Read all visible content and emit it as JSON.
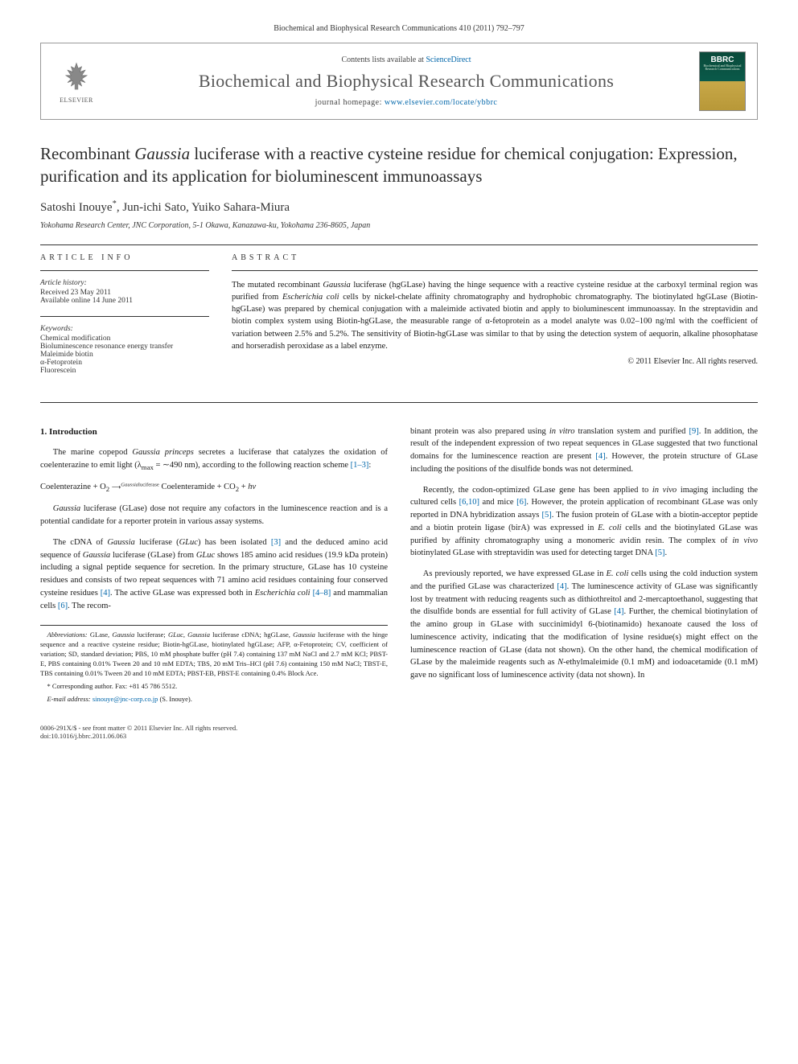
{
  "journal_ref": "Biochemical and Biophysical Research Communications 410 (2011) 792–797",
  "header": {
    "contents_prefix": "Contents lists available at ",
    "contents_link": "ScienceDirect",
    "journal_name": "Biochemical and Biophysical Research Communications",
    "homepage_prefix": "journal homepage: ",
    "homepage_url": "www.elsevier.com/locate/ybbrc",
    "publisher": "ELSEVIER",
    "cover_code": "BBRC",
    "cover_sub": "Biochemical and Biophysical Research Communications"
  },
  "title_html": "Recombinant <em>Gaussia</em> luciferase with a reactive cysteine residue for chemical conjugation: Expression, purification and its application for bioluminescent immunoassays",
  "authors": "Satoshi Inouye",
  "authors_sup": "*",
  "authors_rest": ", Jun-ichi Sato, Yuiko Sahara-Miura",
  "affiliation": "Yokohama Research Center, JNC Corporation, 5-1 Okawa, Kanazawa-ku, Yokohama 236-8605, Japan",
  "article_info": {
    "head": "article info",
    "history_label": "Article history:",
    "received": "Received 23 May 2011",
    "online": "Available online 14 June 2011",
    "keywords_label": "Keywords:",
    "keywords": [
      "Chemical modification",
      "Bioluminescence resonance energy transfer",
      "Maleimide biotin",
      "α-Fetoprotein",
      "Fluorescein"
    ]
  },
  "abstract": {
    "head": "abstract",
    "text_html": "The mutated recombinant <em>Gaussia</em> luciferase (hgGLase) having the hinge sequence with a reactive cysteine residue at the carboxyl terminal region was purified from <em>Escherichia coli</em> cells by nickel-chelate affinity chromatography and hydrophobic chromatography. The biotinylated hgGLase (Biotin-hgGLase) was prepared by chemical conjugation with a maleimide activated biotin and apply to bioluminescent immunoassay. In the streptavidin and biotin complex system using Biotin-hgGLase, the measurable range of α-fetoprotein as a model analyte was 0.02–100 ng/ml with the coefficient of variation between 2.5% and 5.2%. The sensitivity of Biotin-hgGLase was similar to that by using the detection system of aequorin, alkaline phosophatase and horseradish peroxidase as a label enzyme.",
    "copyright": "© 2011 Elsevier Inc. All rights reserved."
  },
  "section1_head": "1. Introduction",
  "left_col": {
    "p1_html": "The marine copepod <em>Gaussia princeps</em> secretes a luciferase that catalyzes the oxidation of coelenterazine to emit light (λ<sub>max</sub> = ∼490 nm), according to the following reaction scheme <a class='ref-link'>[1–3]</a>:",
    "eqn_html": "Coelenterazine + O<sub>2</sub> <span style='font-size:8px;'>⟶<sup><em>Gaussia</em>luciferase</sup></span> Coelenteramide + CO<sub>2</sub> + <em>hν</em>",
    "p2_html": "<em>Gaussia</em> luciferase (GLase) dose not require any cofactors in the luminescence reaction and is a potential candidate for a reporter protein in various assay systems.",
    "p3_html": "The cDNA of <em>Gaussia</em> luciferase (<em>GLuc</em>) has been isolated <a class='ref-link'>[3]</a> and the deduced amino acid sequence of <em>Gaussia</em> luciferase (GLase) from <em>GLuc</em> shows 185 amino acid residues (19.9 kDa protein) including a signal peptide sequence for secretion. In the primary structure, GLase has 10 cysteine residues and consists of two repeat sequences with 71 amino acid residues containing four conserved cysteine residues <a class='ref-link'>[4]</a>. The active GLase was expressed both in <em>Escherichia coli</em> <a class='ref-link'>[4–8]</a> and mammalian cells <a class='ref-link'>[6]</a>. The recom-"
  },
  "right_col": {
    "p1_html": "binant protein was also prepared using <em>in vitro</em> translation system and purified <a class='ref-link'>[9]</a>. In addition, the result of the independent expression of two repeat sequences in GLase suggested that two functional domains for the luminescence reaction are present <a class='ref-link'>[4]</a>. However, the protein structure of GLase including the positions of the disulfide bonds was not determined.",
    "p2_html": "Recently, the codon-optimized GLase gene has been applied to <em>in vivo</em> imaging including the cultured cells <a class='ref-link'>[6,10]</a> and mice <a class='ref-link'>[6]</a>. However, the protein application of recombinant GLase was only reported in DNA hybridization assays <a class='ref-link'>[5]</a>. The fusion protein of GLase with a biotin-acceptor peptide and a biotin protein ligase (birA) was expressed in <em>E. coli</em> cells and the biotinylated GLase was purified by affinity chromatography using a monomeric avidin resin. The complex of <em>in vivo</em> biotinylated GLase with streptavidin was used for detecting target DNA <a class='ref-link'>[5]</a>.",
    "p3_html": "As previously reported, we have expressed GLase in <em>E. coli</em> cells using the cold induction system and the purified GLase was characterized <a class='ref-link'>[4]</a>. The luminescence activity of GLase was significantly lost by treatment with reducing reagents such as dithiothreitol and 2-mercaptoethanol, suggesting that the disulfide bonds are essential for full activity of GLase <a class='ref-link'>[4]</a>. Further, the chemical biotinylation of the amino group in GLase with succinimidyl 6-(biotinamido) hexanoate caused the loss of luminescence activity, indicating that the modification of lysine residue(s) might effect on the luminescence reaction of GLase (data not shown). On the other hand, the chemical modification of GLase by the maleimide reagents such as <em>N</em>-ethylmaleimide (0.1 mM) and iodoacetamide (0.1 mM) gave no significant loss of luminescence activity (data not shown). In"
  },
  "footnotes": {
    "abbrev_html": "<em>Abbreviations:</em> GLase, <em>Gaussia</em> luciferase; <em>GLuc</em>, <em>Gaussia</em> luciferase cDNA; hgGLase, <em>Gaussia</em> luciferase with the hinge sequence and a reactive cysteine residue; Biotin-hgGLase, biotinylated hgGLase; AFP, α-Fetoprotein; CV, coefficient of variation; SD, standard deviation; PBS, 10 mM phosphate buffer (pH 7.4) containing 137 mM NaCl and 2.7 mM KCl; PBST-E, PBS containing 0.01% Tween 20 and 10 mM EDTA; TBS, 20 mM Tris–HCl (pH 7.6) containing 150 mM NaCl; TBST-E, TBS containing 0.01% Tween 20 and 10 mM EDTA; PBST-EB, PBST-E containing 0.4% Block Ace.",
    "corr": "* Corresponding author. Fax: +81 45 786 5512.",
    "email_label": "E-mail address:",
    "email": "sinouye@jnc-corp.co.jp",
    "email_who": "(S. Inouye)."
  },
  "page_foot": {
    "line1": "0006-291X/$ - see front matter © 2011 Elsevier Inc. All rights reserved.",
    "line2": "doi:10.1016/j.bbrc.2011.06.063"
  },
  "colors": {
    "link": "#0066aa",
    "rule": "#333333",
    "text": "#1a1a1a",
    "journal_name": "#555555"
  }
}
